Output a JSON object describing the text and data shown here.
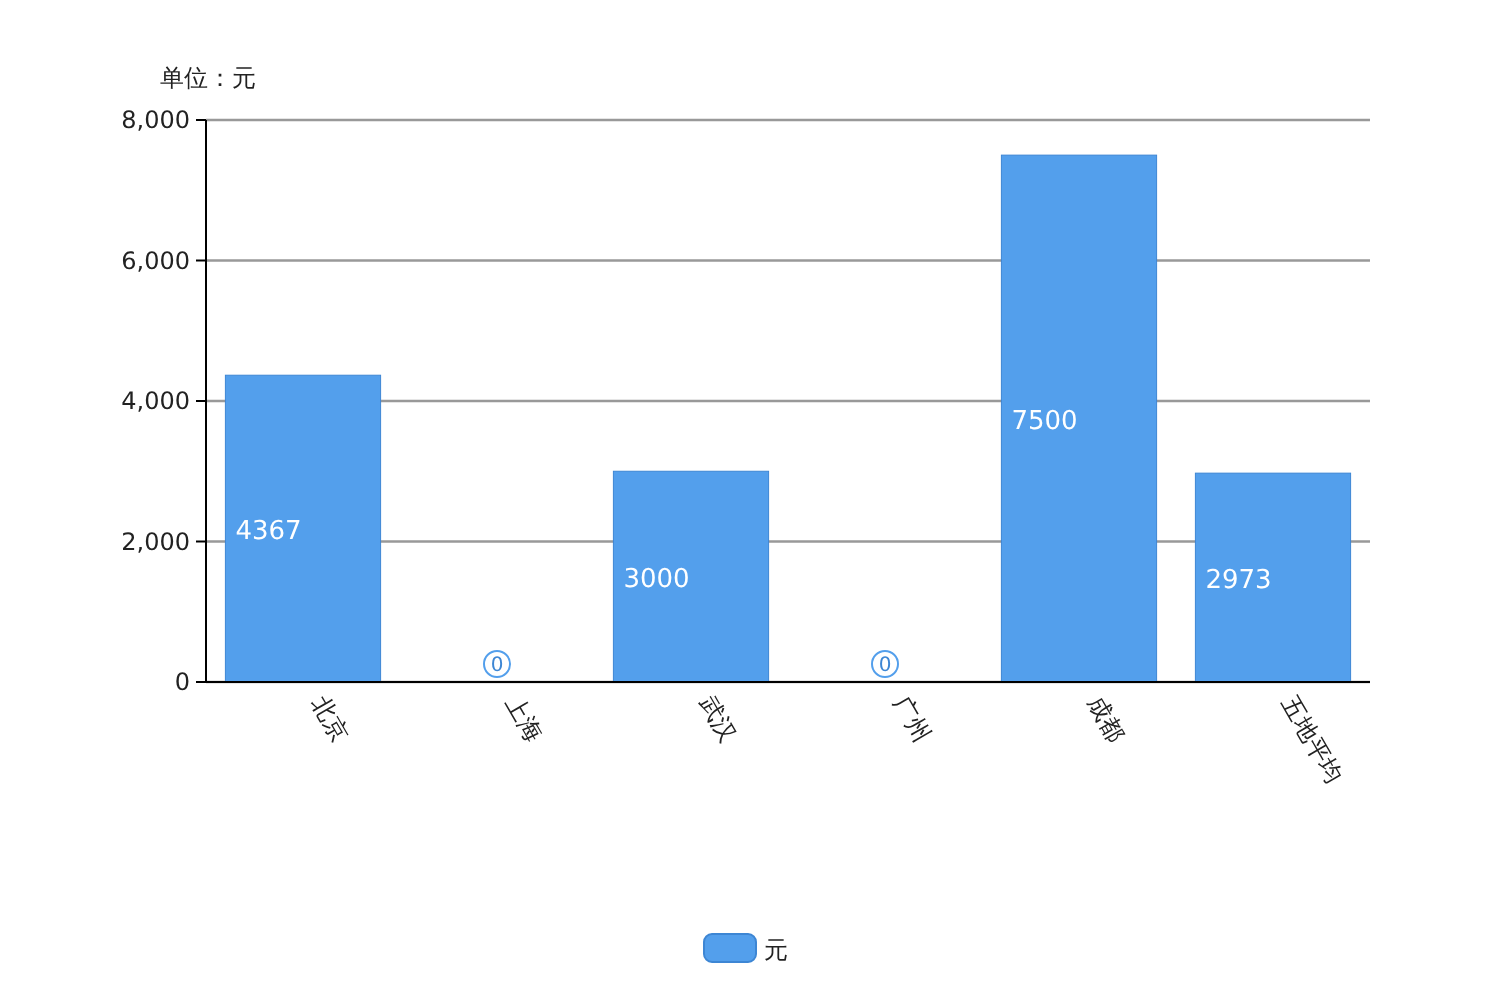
{
  "chart_data": {
    "type": "bar",
    "ylabel": "单位：元",
    "categories": [
      "北京",
      "上海",
      "武汉",
      "广州",
      "成都",
      "五地平均"
    ],
    "series": [
      {
        "name": "元",
        "color": "#539fec",
        "values": [
          4367,
          0,
          3000,
          0,
          7500,
          2973
        ]
      }
    ],
    "ylim": [
      0,
      8000
    ],
    "yticks": [
      {
        "value": 0,
        "label": "0"
      },
      {
        "value": 2000,
        "label": "2,000"
      },
      {
        "value": 4000,
        "label": "4,000"
      },
      {
        "value": 6000,
        "label": "6,000"
      },
      {
        "value": 8000,
        "label": "8,000"
      }
    ],
    "grid": "y",
    "data_labels": true,
    "legend": "bottom"
  }
}
